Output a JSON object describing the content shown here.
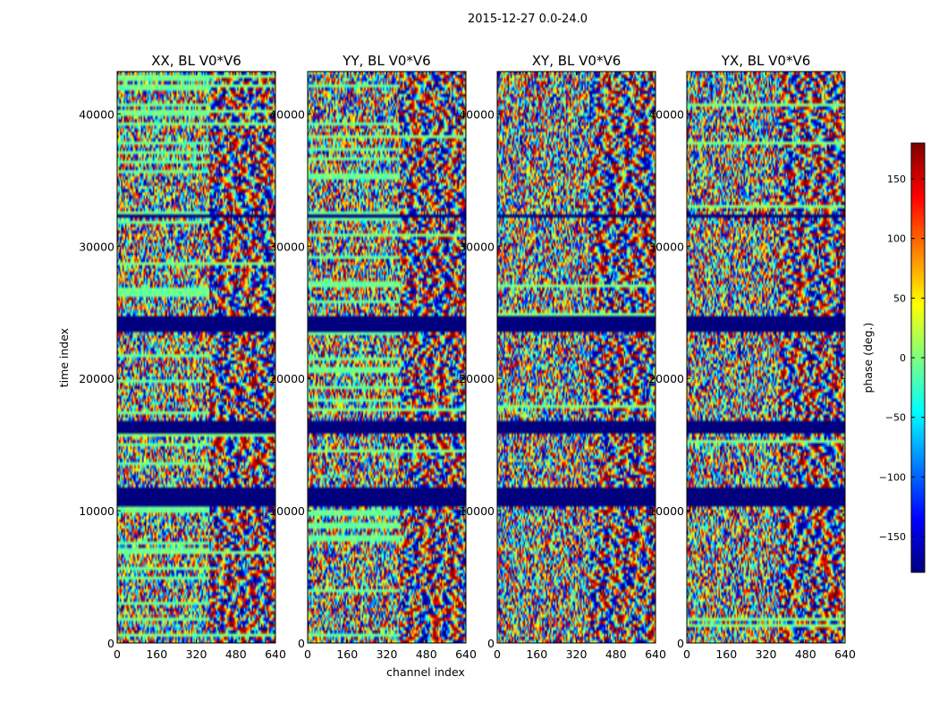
{
  "chart_data": {
    "type": "heatmap",
    "suptitle": "2015-12-27 0.0-24.0",
    "panels": [
      {
        "title": "XX, BL V0*V6"
      },
      {
        "title": "YY, BL V0*V6"
      },
      {
        "title": "XY, BL V0*V6"
      },
      {
        "title": "YX, BL V0*V6"
      }
    ],
    "xlabel": "channel index",
    "ylabel": "time index",
    "x_ticks": [
      "0",
      "160",
      "320",
      "480",
      "640"
    ],
    "x_range": [
      0,
      640
    ],
    "y_ticks": [
      "0",
      "10000",
      "20000",
      "30000",
      "40000"
    ],
    "y_range": [
      0,
      43200
    ],
    "colorbar": {
      "label": "phase (deg.)",
      "range": [
        -180,
        180
      ],
      "ticks": [
        "150",
        "100",
        "50",
        "0",
        "−50",
        "−100",
        "−150"
      ],
      "tick_values": [
        150,
        100,
        50,
        0,
        -50,
        -100,
        -150
      ],
      "colormap": "jet"
    },
    "masked_time_ranges": [
      [
        10400,
        11700
      ],
      [
        15800,
        16700
      ],
      [
        23600,
        24800
      ],
      [
        32200,
        32500
      ]
    ],
    "colors": {
      "masked": "#00007f",
      "jet": [
        "#00007f",
        "#0000ff",
        "#007fff",
        "#00ffff",
        "#7fff7f",
        "#ffff00",
        "#ff7f00",
        "#ff0000",
        "#7f0000"
      ]
    }
  }
}
